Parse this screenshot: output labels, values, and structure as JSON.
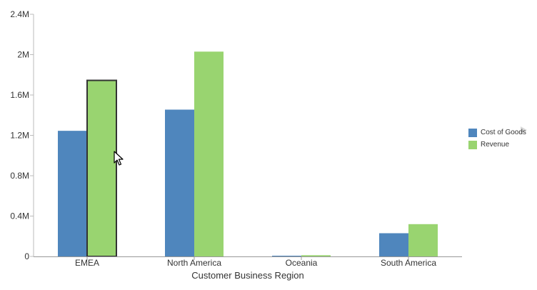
{
  "chart_data": {
    "type": "bar",
    "categories": [
      "EMEA",
      "North America",
      "Oceania",
      "South America"
    ],
    "series": [
      {
        "name": "Cost of Goods",
        "color": "#4f86bd",
        "values": [
          1245000,
          1455000,
          4000,
          230000
        ]
      },
      {
        "name": "Revenue",
        "color": "#99d470",
        "values": [
          1745000,
          2030000,
          12000,
          320000
        ]
      }
    ],
    "ylim": [
      0,
      2400000
    ],
    "yticks": [
      0,
      400000,
      800000,
      1200000,
      1600000,
      2000000,
      2400000
    ],
    "ytick_labels": [
      "0",
      "0.4M",
      "0.8M",
      "1.2M",
      "1.6M",
      "2M",
      "2.4M"
    ],
    "xlabel": "Customer Business Region",
    "ylabel": "",
    "grid": false,
    "legend_position": "right",
    "highlighted": {
      "series": 1,
      "category": 0
    }
  }
}
